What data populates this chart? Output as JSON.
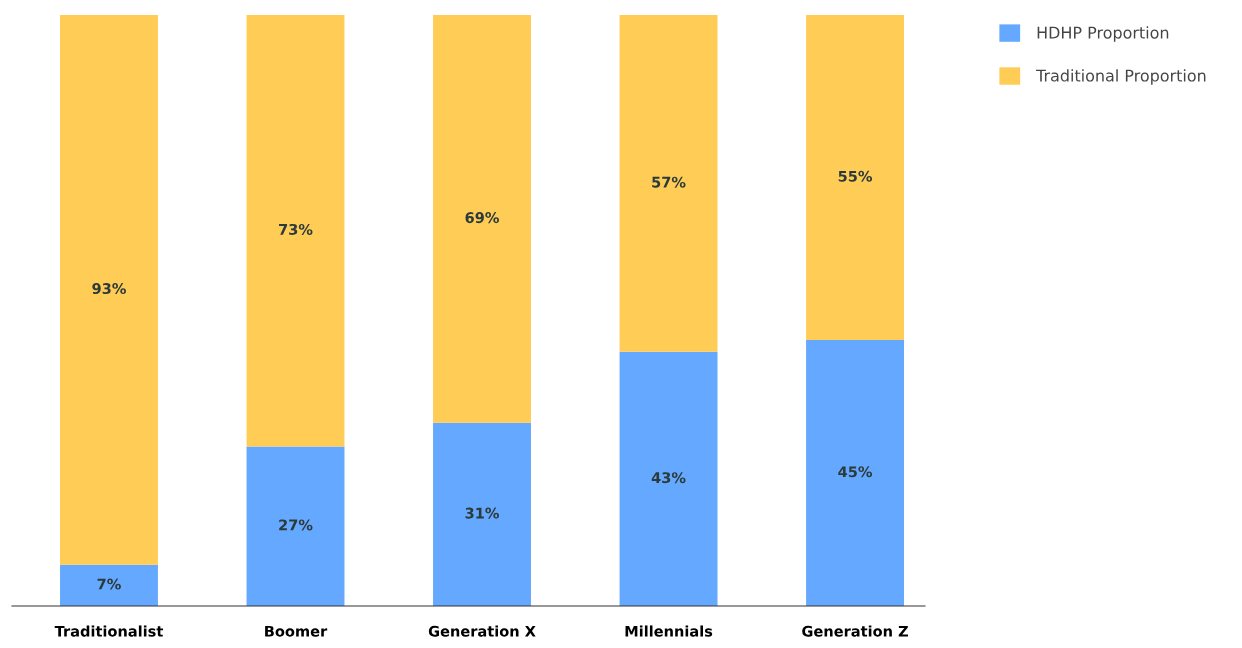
{
  "chart_data": {
    "type": "bar",
    "stacked": true,
    "legend": "top right",
    "categories": [
      "Traditionalist",
      "Boomer",
      "Generation X",
      "Millennials",
      "Generation Z"
    ],
    "series": [
      {
        "name": "HDHP Proportion",
        "color": "#64a8ff",
        "values": [
          7,
          27,
          31,
          43,
          45
        ],
        "value_labels": [
          "7%",
          "27%",
          "31%",
          "43%",
          "45%"
        ]
      },
      {
        "name": "Traditional Proportion",
        "color": "#ffcc55",
        "values": [
          93,
          73,
          69,
          57,
          55
        ],
        "value_labels": [
          "93%",
          "73%",
          "69%",
          "57%",
          "55%"
        ]
      }
    ]
  }
}
